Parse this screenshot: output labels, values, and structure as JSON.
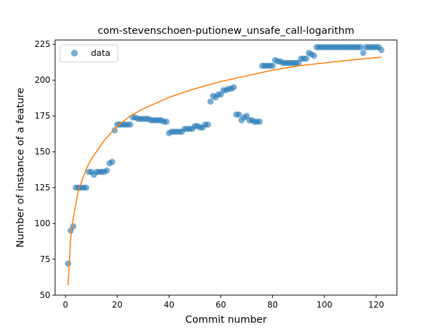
{
  "chart_data": {
    "type": "scatter",
    "title": "com-stevenschoen-putionew_unsafe_call-logarithm",
    "xlabel": "Commit number",
    "ylabel": "Number of instance of a feature",
    "xlim": [
      -4,
      128
    ],
    "ylim": [
      50,
      228
    ],
    "xticks": [
      0,
      20,
      40,
      60,
      80,
      100,
      120
    ],
    "yticks": [
      50,
      75,
      100,
      125,
      150,
      175,
      200,
      225
    ],
    "grid": false,
    "legend_position": "top-left",
    "colors": {
      "data": "#1f77b4",
      "fit": "#ff7f0e"
    },
    "series": [
      {
        "name": "data",
        "kind": "scatter",
        "x": [
          1,
          2,
          3,
          4,
          5,
          6,
          7,
          8,
          9,
          10,
          11,
          12,
          13,
          14,
          15,
          16,
          17,
          18,
          19,
          20,
          21,
          22,
          23,
          24,
          25,
          26,
          27,
          28,
          29,
          30,
          31,
          32,
          33,
          34,
          35,
          36,
          37,
          38,
          39,
          40,
          41,
          42,
          43,
          44,
          45,
          46,
          47,
          48,
          49,
          50,
          51,
          52,
          53,
          54,
          55,
          56,
          57,
          58,
          59,
          60,
          61,
          62,
          63,
          64,
          65,
          66,
          67,
          68,
          69,
          70,
          71,
          72,
          73,
          74,
          75,
          76,
          77,
          78,
          79,
          80,
          81,
          82,
          83,
          84,
          85,
          86,
          87,
          88,
          89,
          90,
          91,
          92,
          93,
          94,
          95,
          96,
          97,
          98,
          99,
          100,
          101,
          102,
          103,
          104,
          105,
          106,
          107,
          108,
          109,
          110,
          111,
          112,
          113,
          114,
          115,
          116,
          117,
          118,
          119,
          120,
          121,
          122
        ],
        "y": [
          72,
          95,
          98,
          125,
          125,
          125,
          125,
          125,
          136,
          136,
          134,
          136,
          136,
          136,
          136,
          137,
          142,
          143,
          165,
          169,
          169,
          169,
          169,
          169,
          169,
          174,
          174,
          173,
          173,
          173,
          173,
          173,
          172,
          172,
          172,
          172,
          172,
          171,
          171,
          163,
          164,
          164,
          164,
          164,
          164,
          166,
          166,
          166,
          166,
          168,
          168,
          167,
          167,
          169,
          169,
          185,
          189,
          188,
          190,
          190,
          193,
          193,
          194,
          194,
          195,
          176,
          176,
          172,
          174,
          175,
          172,
          172,
          171,
          171,
          171,
          210,
          210,
          210,
          210,
          210,
          214,
          213,
          213,
          212,
          212,
          212,
          212,
          212,
          212,
          212,
          215,
          215,
          215,
          219,
          218,
          217,
          223,
          223,
          223,
          223,
          223,
          223,
          223,
          223,
          223,
          223,
          223,
          223,
          223,
          223,
          223,
          223,
          223,
          223,
          219,
          223,
          223,
          223,
          223,
          223,
          223,
          221
        ]
      },
      {
        "name": "",
        "kind": "line",
        "fit": "logarithmic",
        "x": [
          1,
          2,
          3,
          5,
          8,
          10,
          15,
          20,
          25,
          30,
          40,
          50,
          60,
          70,
          80,
          90,
          100,
          110,
          122
        ],
        "y": [
          57,
          90,
          104,
          123,
          138,
          145,
          158,
          168,
          175,
          180,
          188,
          194,
          199,
          203,
          207,
          210,
          212,
          214,
          216
        ]
      }
    ]
  }
}
